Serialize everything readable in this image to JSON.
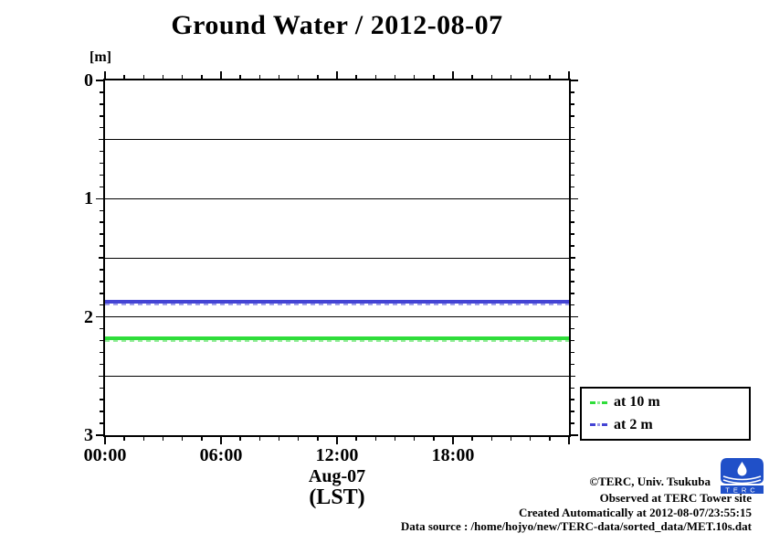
{
  "title": "Ground Water / 2012-08-07",
  "y_axis": {
    "unit_label": "[m]",
    "tick_labels": [
      "0",
      "1",
      "2",
      "3"
    ],
    "min": 0,
    "max": 3,
    "minor_tick_step": 0.1,
    "grid_step": 0.5
  },
  "x_axis": {
    "tick_labels": [
      "00:00",
      "06:00",
      "12:00",
      "18:00"
    ],
    "tick_hours": [
      0,
      6,
      12,
      18
    ],
    "span_hours": 24,
    "minor_tick_step_hours": 1,
    "major_tick_step_hours": 6,
    "date_label": "Aug-07",
    "timezone_label": "(LST)"
  },
  "legend": {
    "entries": [
      {
        "label": "at 10 m",
        "color": "#2fdd3a"
      },
      {
        "label": "at 2 m",
        "color": "#4444d4"
      }
    ]
  },
  "footer": {
    "copyright": "©TERC, Univ. Tsukuba",
    "observed": "Observed at TERC Tower site",
    "created": "Created Automatically at 2012-08-07/23:55:15",
    "data_source": "Data source : /home/hojyo/new/TERC-data/sorted_data/MET.10s.dat",
    "logo_text": "TERC"
  },
  "chart_data": {
    "type": "line",
    "title": "Ground Water / 2012-08-07",
    "xlabel": "Aug-07 (LST)",
    "ylabel": "[m]",
    "x_ticks": [
      "00:00",
      "06:00",
      "12:00",
      "18:00"
    ],
    "x_range_hours": [
      0,
      24
    ],
    "ylim": [
      0,
      3
    ],
    "y_axis_inverted": true,
    "grid": "horizontal lines every 0.5 m, minor axis ticks every 0.1 m and every hour",
    "legend_position": "outside lower right",
    "series": [
      {
        "name": "at 10 m",
        "color": "#2fdd3a",
        "style": "thick dashed",
        "depth_m": 2.18,
        "shape": "constant for full day 00:00-24:00"
      },
      {
        "name": "at 2 m",
        "color": "#4444d4",
        "style": "thick dashed",
        "depth_m": 1.87,
        "shape": "constant for full day 00:00-24:00"
      }
    ]
  }
}
